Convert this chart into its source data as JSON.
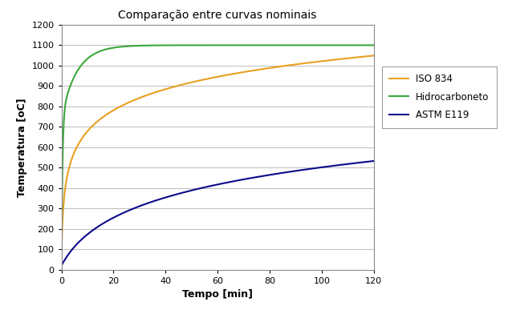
{
  "title": "Comparação entre curvas nominais",
  "xlabel": "Tempo [min]",
  "ylabel": "Temperatura [oC]",
  "xlim": [
    0,
    120
  ],
  "ylim": [
    0,
    1200
  ],
  "xticks": [
    0,
    20,
    40,
    60,
    80,
    100,
    120
  ],
  "yticks": [
    0,
    100,
    200,
    300,
    400,
    500,
    600,
    700,
    800,
    900,
    1000,
    1100,
    1200
  ],
  "legend_labels": [
    "ISO 834",
    "Hidrocarboneto",
    "ASTM E119"
  ],
  "line_colors": [
    "#E8A020",
    "#3BA83B",
    "#0A0A8B"
  ],
  "background_color": "#FFFFFF",
  "grid_color": "#BBBBBB",
  "title_fontsize": 10,
  "axis_label_fontsize": 9,
  "tick_fontsize": 8,
  "legend_fontsize": 8.5,
  "linewidth": 1.5
}
